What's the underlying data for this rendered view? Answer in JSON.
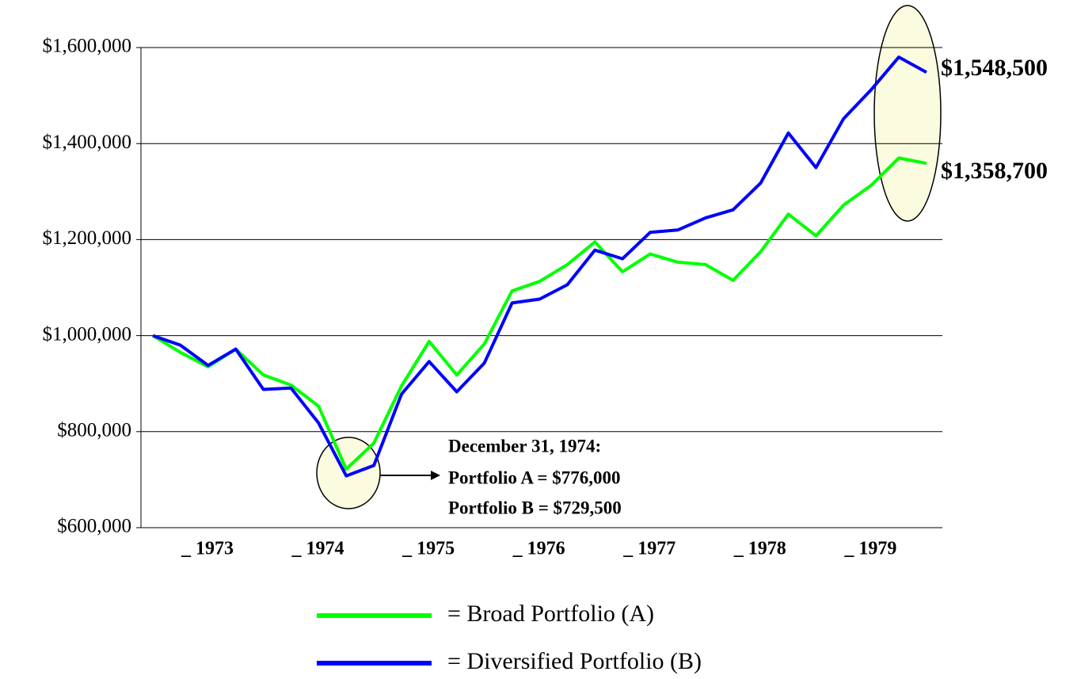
{
  "chart_data": {
    "type": "line",
    "ylim": [
      600000,
      1600000
    ],
    "yticks": [
      {
        "value": 600000,
        "label": "$600,000"
      },
      {
        "value": 800000,
        "label": "$800,000"
      },
      {
        "value": 1000000,
        "label": "$1,000,000"
      },
      {
        "value": 1200000,
        "label": "$1,200,000"
      },
      {
        "value": 1400000,
        "label": "$1,400,000"
      },
      {
        "value": 1600000,
        "label": "$1,600,000"
      }
    ],
    "grid": true,
    "year_labels": [
      "_ 1973",
      "_ 1974",
      "_ 1975",
      "_ 1976",
      "_ 1977",
      "_ 1978",
      "_ 1979"
    ],
    "series": [
      {
        "name": "= Broad Portfolio (A)",
        "color": "#00ff00",
        "values": [
          1000000,
          965000,
          935000,
          972000,
          918000,
          897000,
          853000,
          722000,
          776000,
          895000,
          988000,
          918000,
          983000,
          1093000,
          1113000,
          1148000,
          1195000,
          1133000,
          1170000,
          1153000,
          1148000,
          1115000,
          1175000,
          1253000,
          1208000,
          1272000,
          1313000,
          1370000,
          1358700
        ]
      },
      {
        "name": "= Diversified Portfolio (B)",
        "color": "#0000ff",
        "values": [
          1000000,
          980000,
          938000,
          972000,
          888000,
          891000,
          818000,
          708000,
          729500,
          878000,
          946000,
          883000,
          943000,
          1068000,
          1076000,
          1106000,
          1178000,
          1160000,
          1215000,
          1220000,
          1245000,
          1262000,
          1318000,
          1422000,
          1350000,
          1452000,
          1512000,
          1580000,
          1548500
        ]
      }
    ],
    "annotations": [
      "December 31, 1974:",
      "Portfolio A = $776,000",
      "Portfolio B = $729,500",
      "$1,548,500",
      "$1,358,700"
    ]
  }
}
